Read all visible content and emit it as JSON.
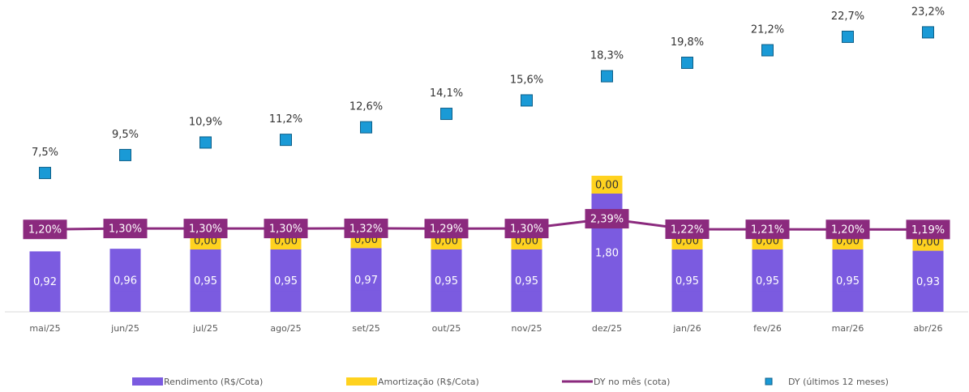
{
  "chart_data": {
    "type": "combo",
    "categories": [
      "mai/25",
      "jun/25",
      "jul/25",
      "ago/25",
      "set/25",
      "out/25",
      "nov/25",
      "dez/25",
      "jan/26",
      "fev/26",
      "mar/26",
      "abr/26"
    ],
    "ylim": [
      0,
      4.5
    ],
    "y2lim": [
      -8,
      25
    ],
    "series": [
      {
        "name": "Rendimento (R$/Cota)",
        "type": "bar",
        "color": "#7b5be0",
        "values": [
          0.92,
          0.96,
          0.95,
          0.95,
          0.97,
          0.95,
          0.95,
          1.8,
          0.95,
          0.95,
          0.95,
          0.93
        ],
        "value_labels": [
          "0,92",
          "0,96",
          "0,95",
          "0,95",
          "0,97",
          "0,95",
          "0,95",
          "1,80",
          "0,95",
          "0,95",
          "0,95",
          "0,93"
        ]
      },
      {
        "name": "Amortização (R$/Cota)",
        "type": "bar",
        "color": "#ffd21f",
        "values": [
          null,
          null,
          0,
          0,
          0,
          0,
          0,
          0,
          0,
          0,
          0,
          0
        ],
        "value_labels": [
          null,
          null,
          "0,00",
          "0,00",
          "0,00",
          "0,00",
          "0,00",
          "0,00",
          "0,00",
          "0,00",
          "0,00",
          "0,00"
        ]
      },
      {
        "name": "DY no mês (cota)",
        "type": "line",
        "axis": "y2",
        "color": "#8b2a7e",
        "values": [
          1.2,
          1.3,
          1.3,
          1.3,
          1.32,
          1.29,
          1.3,
          2.39,
          1.22,
          1.21,
          1.2,
          1.19
        ],
        "value_labels": [
          "1,20%",
          "1,30%",
          "1,30%",
          "1,30%",
          "1,32%",
          "1,29%",
          "1,30%",
          "2,39%",
          "1,22%",
          "1,21%",
          "1,20%",
          "1,19%"
        ]
      },
      {
        "name": "DY (últimos 12 meses)",
        "type": "scatter",
        "axis": "y2",
        "color": "#1a9ad6",
        "values": [
          7.5,
          9.5,
          10.9,
          11.2,
          12.6,
          14.1,
          15.6,
          18.3,
          19.8,
          21.2,
          22.7,
          23.2
        ],
        "value_labels": [
          "7,5%",
          "9,5%",
          "10,9%",
          "11,2%",
          "12,6%",
          "14,1%",
          "15,6%",
          "18,3%",
          "19,8%",
          "21,2%",
          "22,7%",
          "23,2%"
        ]
      }
    ]
  }
}
